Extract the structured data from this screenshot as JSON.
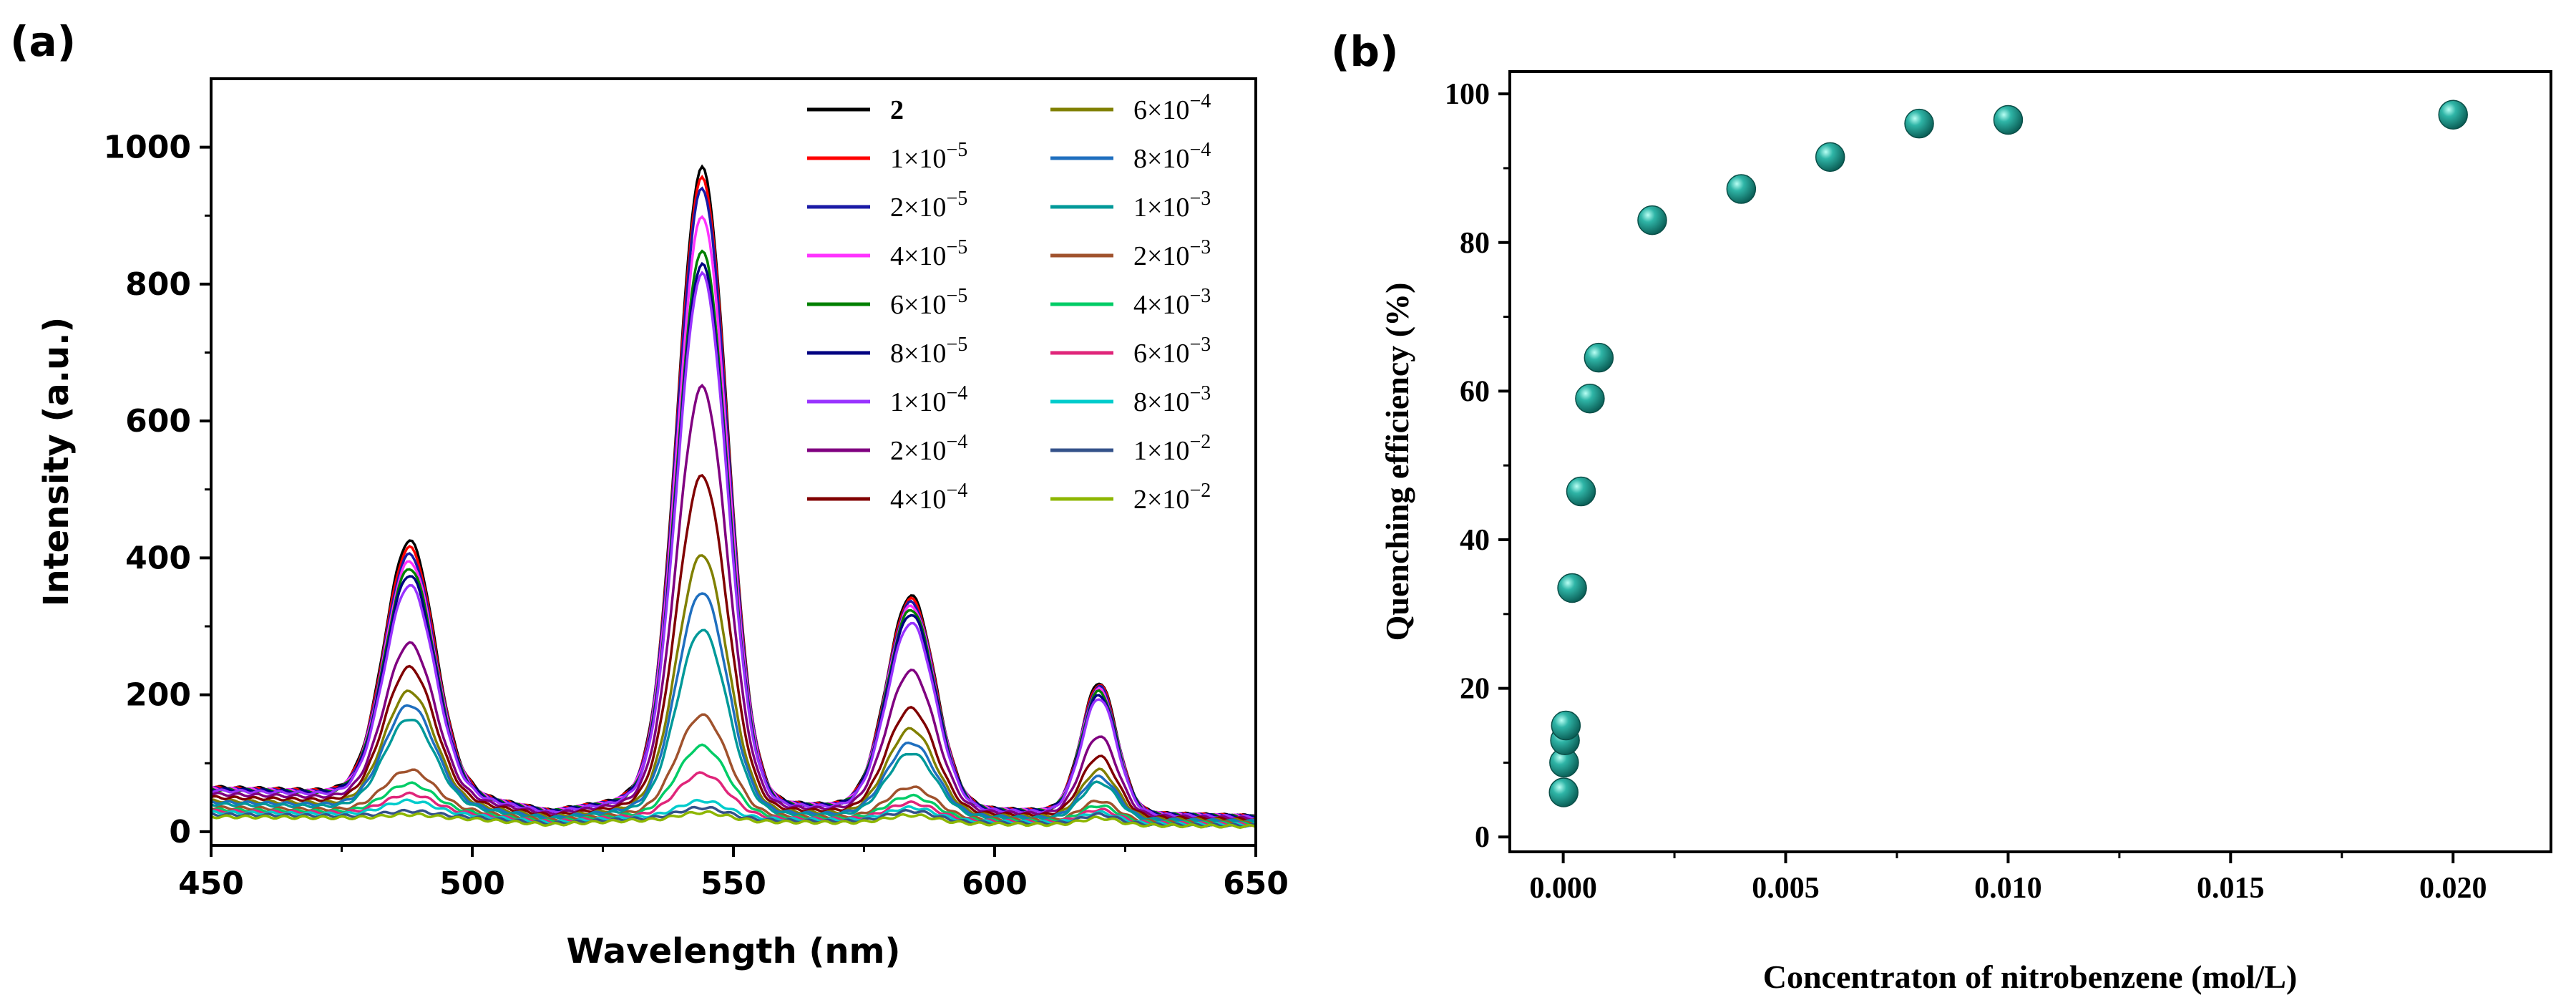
{
  "chart_data": [
    {
      "panel": "(a)",
      "type": "line",
      "title": "",
      "xlabel": "Wavelength (nm)",
      "ylabel": "Intensity (a.u.)",
      "xlim": [
        450,
        650
      ],
      "ylim": [
        -20,
        1100
      ],
      "xticks": [
        450,
        500,
        550,
        600,
        650
      ],
      "yticks": [
        0,
        200,
        400,
        600,
        800,
        1000
      ],
      "peak_wavelengths": [
        488,
        544,
        584,
        620
      ],
      "legend_position": "top-right",
      "series": [
        {
          "name": "2",
          "label_base": "2",
          "label_exp": "",
          "color": "#000000",
          "peaks": [
            425,
            970,
            345,
            218
          ],
          "baseline": 65
        },
        {
          "name": "1×10^-5",
          "label_base": "1×10",
          "label_exp": "−5",
          "color": "#ff0000",
          "peaks": [
            415,
            955,
            340,
            215
          ],
          "baseline": 64
        },
        {
          "name": "2×10^-5",
          "label_base": "2×10",
          "label_exp": "−5",
          "color": "#1a1aa6",
          "peaks": [
            405,
            940,
            335,
            212
          ],
          "baseline": 63
        },
        {
          "name": "4×10^-5",
          "label_base": "4×10",
          "label_exp": "−5",
          "color": "#ff33ff",
          "peaks": [
            395,
            900,
            330,
            208
          ],
          "baseline": 63
        },
        {
          "name": "6×10^-5",
          "label_base": "6×10",
          "label_exp": "−5",
          "color": "#008000",
          "peaks": [
            385,
            850,
            325,
            205
          ],
          "baseline": 62
        },
        {
          "name": "8×10^-5",
          "label_base": "8×10",
          "label_exp": "−5",
          "color": "#000080",
          "peaks": [
            375,
            830,
            318,
            200
          ],
          "baseline": 62
        },
        {
          "name": "1×10^-4",
          "label_base": "1×10",
          "label_exp": "−4",
          "color": "#9933ff",
          "peaks": [
            360,
            815,
            305,
            195
          ],
          "baseline": 60
        },
        {
          "name": "2×10^-4",
          "label_base": "2×10",
          "label_exp": "−4",
          "color": "#800080",
          "peaks": [
            275,
            650,
            235,
            140
          ],
          "baseline": 55
        },
        {
          "name": "4×10^-4",
          "label_base": "4×10",
          "label_exp": "−4",
          "color": "#800000",
          "peaks": [
            240,
            520,
            180,
            110
          ],
          "baseline": 50
        },
        {
          "name": "6×10^-4",
          "label_base": "6×10",
          "label_exp": "−4",
          "color": "#808000",
          "peaks": [
            205,
            405,
            150,
            90
          ],
          "baseline": 45
        },
        {
          "name": "8×10^-4",
          "label_base": "8×10",
          "label_exp": "−4",
          "color": "#1f6fbf",
          "peaks": [
            185,
            350,
            130,
            80
          ],
          "baseline": 43
        },
        {
          "name": "1×10^-3",
          "label_base": "1×10",
          "label_exp": "−3",
          "color": "#009999",
          "peaks": [
            165,
            295,
            115,
            72
          ],
          "baseline": 40
        },
        {
          "name": "2×10^-3",
          "label_base": "2×10",
          "label_exp": "−3",
          "color": "#a0522d",
          "peaks": [
            90,
            170,
            65,
            45
          ],
          "baseline": 35
        },
        {
          "name": "4×10^-3",
          "label_base": "4×10",
          "label_exp": "−3",
          "color": "#00cc66",
          "peaks": [
            70,
            125,
            52,
            38
          ],
          "baseline": 32
        },
        {
          "name": "6×10^-3",
          "label_base": "6×10",
          "label_exp": "−3",
          "color": "#e0257a",
          "peaks": [
            55,
            85,
            42,
            32
          ],
          "baseline": 30
        },
        {
          "name": "8×10^-3",
          "label_base": "8×10",
          "label_exp": "−3",
          "color": "#00cccc",
          "peaks": [
            45,
            45,
            35,
            28
          ],
          "baseline": 28
        },
        {
          "name": "1×10^-2",
          "label_base": "1×10",
          "label_exp": "−2",
          "color": "#34528a",
          "peaks": [
            30,
            35,
            30,
            25
          ],
          "baseline": 25
        },
        {
          "name": "2×10^-2",
          "label_base": "2×10",
          "label_exp": "−2",
          "color": "#8db600",
          "peaks": [
            25,
            28,
            24,
            20
          ],
          "baseline": 22
        }
      ]
    },
    {
      "panel": "(b)",
      "type": "scatter",
      "title": "",
      "xlabel": "Concentraton of nitrobenzene (mol/L)",
      "ylabel": "Quenching efficiency (%)",
      "xlim": [
        -0.0012,
        0.0222
      ],
      "ylim": [
        -2,
        103
      ],
      "xticks": [
        "0.000",
        "0.005",
        "0.010",
        "0.015",
        "0.020"
      ],
      "yticks": [
        "0",
        "20",
        "40",
        "60",
        "80",
        "100"
      ],
      "marker_color": "#1a9a8f",
      "points": [
        {
          "x": 1e-05,
          "y": 6
        },
        {
          "x": 2e-05,
          "y": 10
        },
        {
          "x": 4e-05,
          "y": 13
        },
        {
          "x": 6e-05,
          "y": 15
        },
        {
          "x": 0.0002,
          "y": 33.5
        },
        {
          "x": 0.0004,
          "y": 46.5
        },
        {
          "x": 0.0006,
          "y": 59
        },
        {
          "x": 0.0008,
          "y": 64.5
        },
        {
          "x": 0.002,
          "y": 83
        },
        {
          "x": 0.004,
          "y": 87.2
        },
        {
          "x": 0.006,
          "y": 91.5
        },
        {
          "x": 0.008,
          "y": 96
        },
        {
          "x": 0.01,
          "y": 96.5
        },
        {
          "x": 0.02,
          "y": 97.2
        }
      ]
    }
  ]
}
